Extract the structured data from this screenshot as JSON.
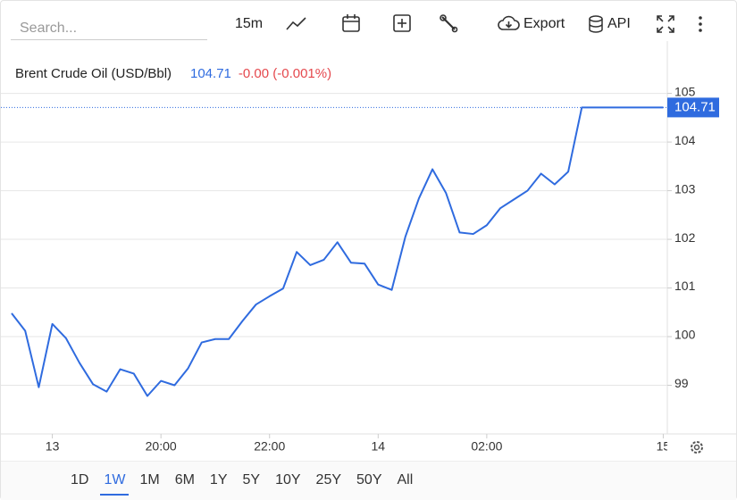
{
  "toolbar": {
    "search_placeholder": "Search...",
    "interval": "15m",
    "export": "Export",
    "api": "API"
  },
  "chart_data": {
    "type": "line",
    "title": "Brent Crude Oil (USD/Bbl)",
    "last_price": "104.71",
    "change": "-0.00 (-0.001%)",
    "change_color": "#e5484d",
    "x": [
      0,
      1,
      2,
      3,
      4,
      5,
      6,
      7,
      8,
      9,
      10,
      11,
      12,
      13,
      14,
      15,
      16,
      17,
      18,
      19,
      20,
      21,
      22,
      23,
      24,
      25,
      26,
      27,
      28,
      29,
      30,
      31,
      32,
      33,
      34,
      35,
      36,
      37,
      38,
      39,
      40,
      41,
      42,
      43,
      44,
      45,
      46,
      47,
      48
    ],
    "values": [
      100.48,
      100.12,
      98.96,
      100.26,
      99.97,
      99.46,
      99.02,
      98.87,
      99.33,
      99.24,
      98.78,
      99.09,
      99.0,
      99.35,
      99.88,
      99.95,
      99.95,
      100.32,
      100.66,
      100.83,
      100.99,
      101.74,
      101.47,
      101.58,
      101.94,
      101.52,
      101.5,
      101.07,
      100.96,
      102.05,
      102.84,
      103.44,
      102.95,
      102.14,
      102.11,
      102.29,
      102.64,
      102.82,
      103.0,
      103.35,
      103.13,
      103.39,
      104.71,
      104.71,
      104.71,
      104.71,
      104.71,
      104.71,
      104.71
    ],
    "color": "#2f6bdf",
    "xlim": [
      0,
      48.3
    ],
    "xticks": [
      {
        "value": 3,
        "label": "13"
      },
      {
        "value": 11,
        "label": "20:00"
      },
      {
        "value": 19,
        "label": "22:00"
      },
      {
        "value": 27,
        "label": "14"
      },
      {
        "value": 35,
        "label": "02:00"
      },
      {
        "value": 48,
        "label": "15"
      }
    ],
    "ylim": [
      98,
      105.8
    ],
    "yticks": [
      99,
      100,
      101,
      102,
      103,
      104,
      105
    ],
    "grid": true
  },
  "ranges": {
    "options": [
      "1D",
      "1W",
      "1M",
      "6M",
      "1Y",
      "5Y",
      "10Y",
      "25Y",
      "50Y",
      "All"
    ],
    "active": 1
  }
}
